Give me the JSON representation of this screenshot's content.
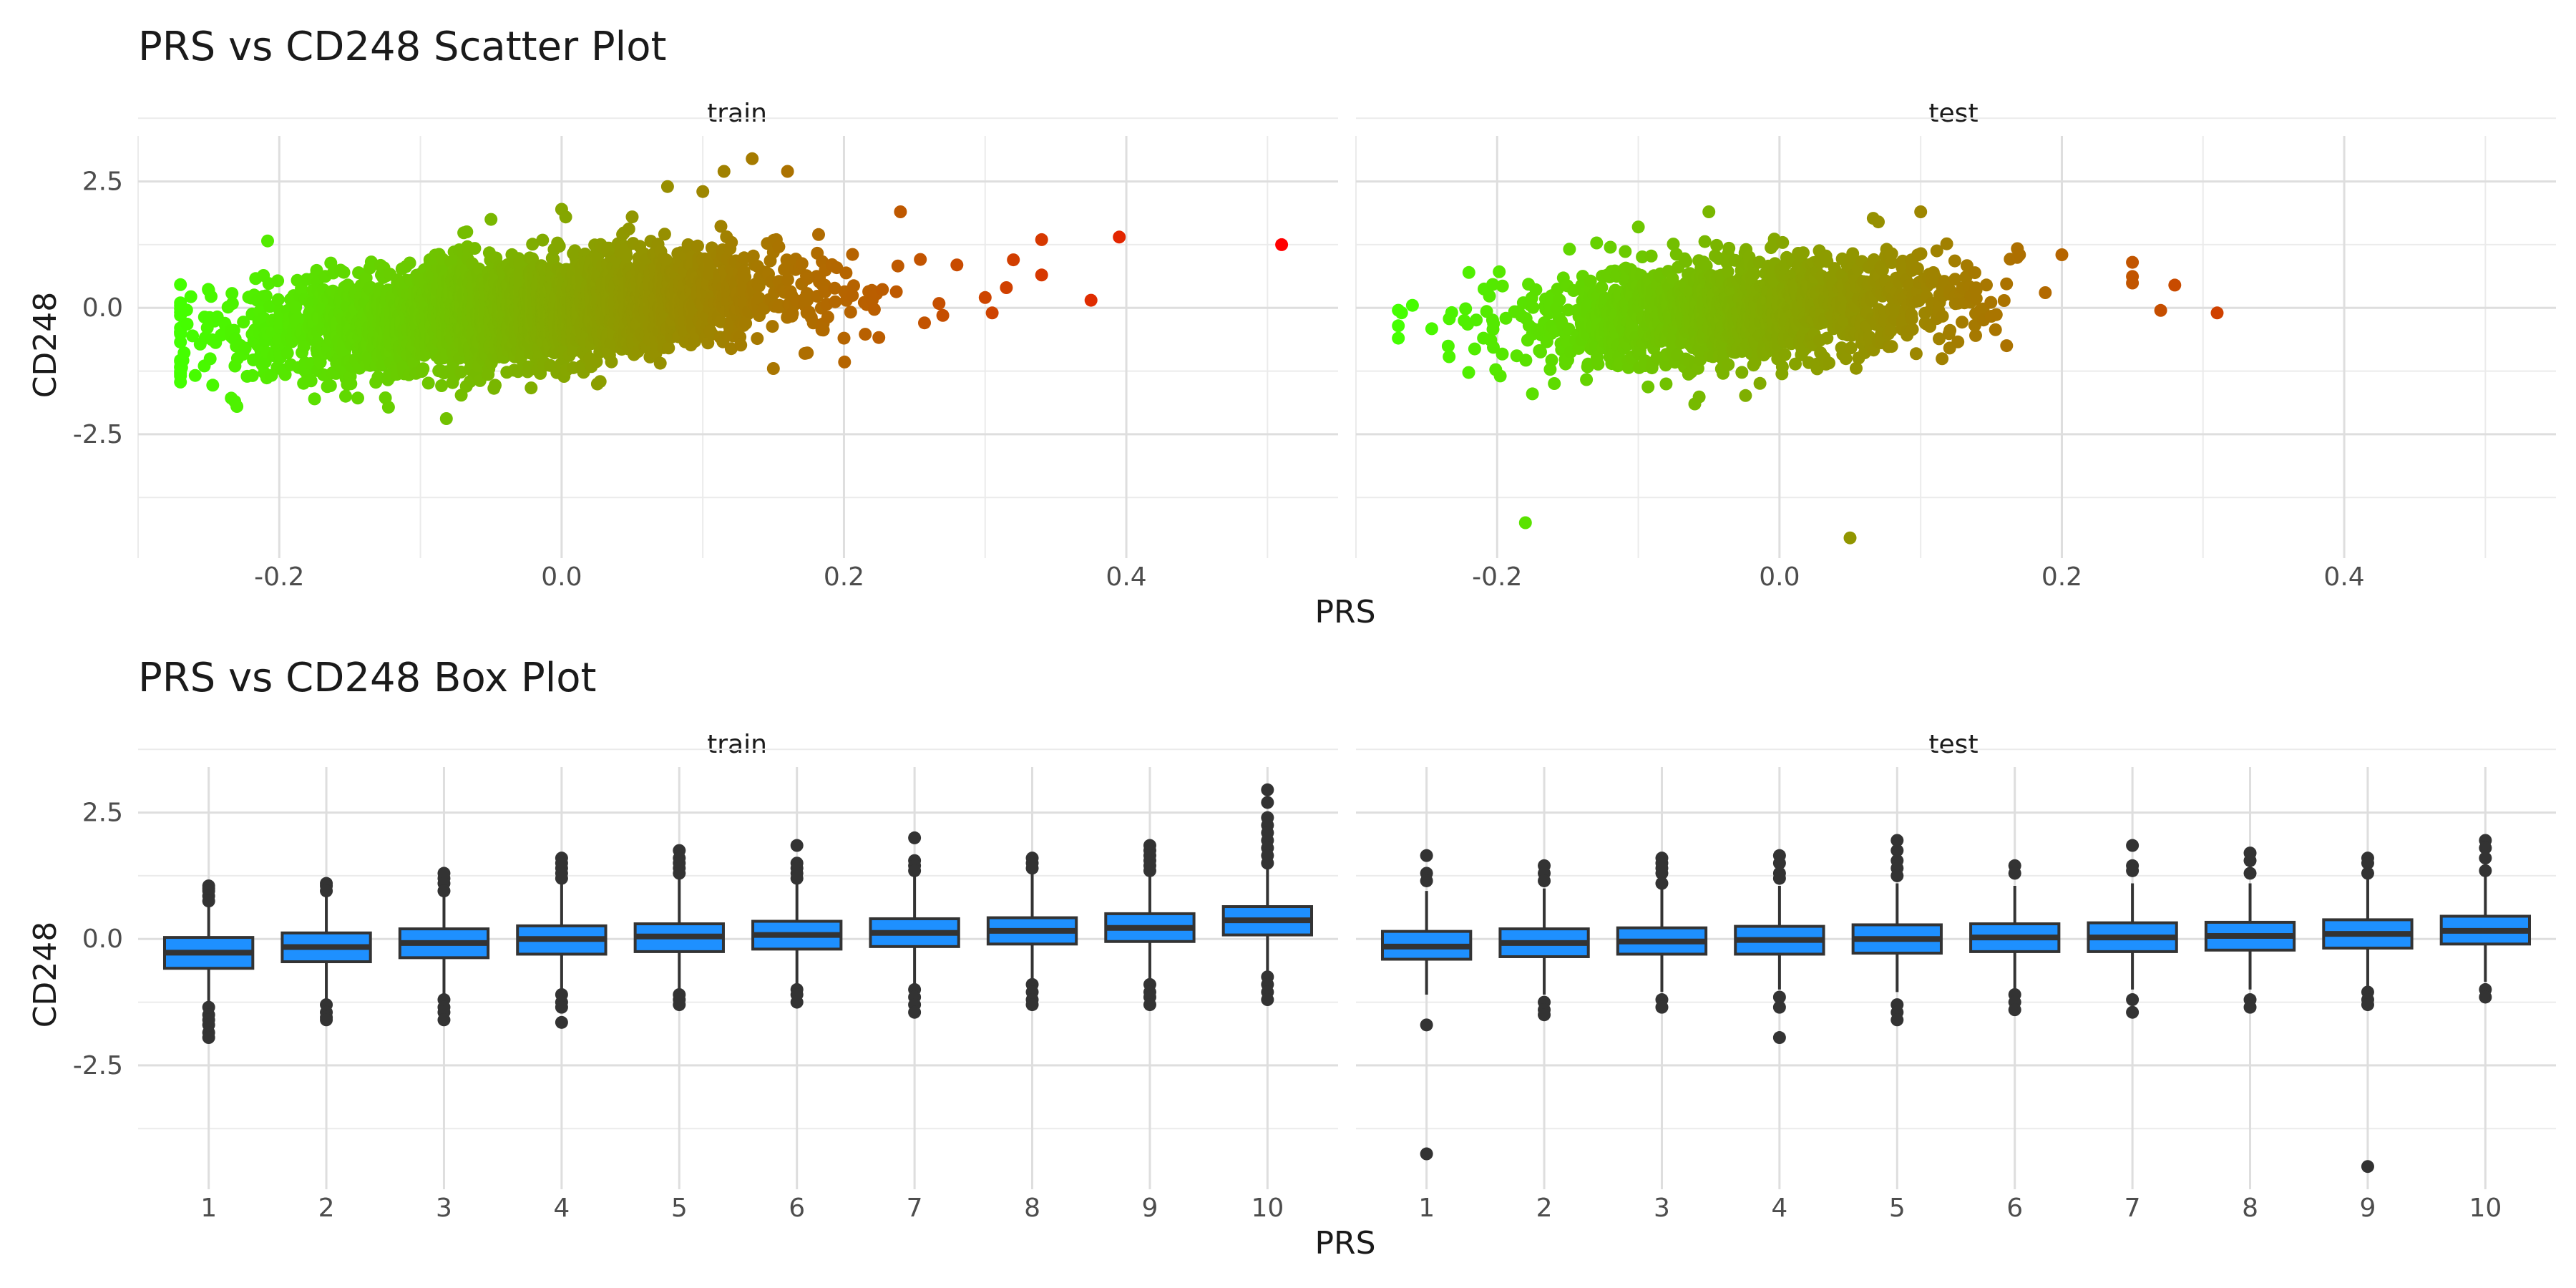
{
  "chart_data": [
    {
      "type": "scatter",
      "title": "PRS vs CD248 Scatter Plot",
      "xlabel": "PRS",
      "ylabel": "CD248",
      "xlim": [
        -0.3,
        0.55
      ],
      "ylim": [
        -4.95,
        3.4
      ],
      "x_ticks": [
        "-0.2",
        "0.0",
        "0.2",
        "0.4"
      ],
      "y_ticks": [
        "2.5",
        "0.0",
        "-2.5"
      ],
      "grid": true,
      "legend": "none",
      "color_scale": {
        "low": "#44ff00",
        "high": "#ff0000",
        "by": "PRS"
      },
      "facets": [
        {
          "name": "train",
          "cloud": {
            "n": 3600,
            "x_mean": -0.03,
            "x_sd": 0.09,
            "x_range": [
              -0.27,
              0.3
            ],
            "slope": 2.2,
            "y_sd": 0.5
          },
          "points": [
            {
              "x": 0.51,
              "y": 1.25
            },
            {
              "x": 0.395,
              "y": 1.4
            },
            {
              "x": 0.375,
              "y": 0.15
            },
            {
              "x": 0.34,
              "y": 1.35
            },
            {
              "x": 0.34,
              "y": 0.65
            },
            {
              "x": 0.32,
              "y": 0.95
            },
            {
              "x": 0.315,
              "y": 0.4
            },
            {
              "x": 0.305,
              "y": -0.1
            },
            {
              "x": 0.28,
              "y": 0.85
            },
            {
              "x": 0.27,
              "y": -0.15
            },
            {
              "x": 0.24,
              "y": 1.9
            },
            {
              "x": 0.22,
              "y": 0.15
            },
            {
              "x": 0.135,
              "y": 2.95
            },
            {
              "x": 0.115,
              "y": 2.7
            },
            {
              "x": 0.16,
              "y": 2.7
            },
            {
              "x": 0.1,
              "y": 2.3
            },
            {
              "x": 0.075,
              "y": 2.4
            },
            {
              "x": 0.15,
              "y": 1.1
            },
            {
              "x": 0.15,
              "y": -1.2
            },
            {
              "x": 0.2,
              "y": -0.6
            },
            {
              "x": -0.23,
              "y": -1.95
            },
            {
              "x": -0.27,
              "y": 0.1
            },
            {
              "x": -0.27,
              "y": -1.3
            },
            {
              "x": -0.25,
              "y": 0.35
            },
            {
              "x": -0.175,
              "y": -1.8
            },
            {
              "x": 0.0,
              "y": 1.95
            },
            {
              "x": -0.05,
              "y": 1.75
            },
            {
              "x": 0.05,
              "y": 1.8
            }
          ]
        },
        {
          "name": "test",
          "cloud": {
            "n": 1500,
            "x_mean": -0.03,
            "x_sd": 0.08,
            "x_range": [
              -0.27,
              0.25
            ],
            "slope": 1.8,
            "y_sd": 0.5
          },
          "points": [
            {
              "x": 0.31,
              "y": -0.1
            },
            {
              "x": 0.28,
              "y": 0.45
            },
            {
              "x": 0.27,
              "y": -0.05
            },
            {
              "x": 0.25,
              "y": 0.9
            },
            {
              "x": 0.2,
              "y": 1.05
            },
            {
              "x": 0.17,
              "y": 1.05
            },
            {
              "x": -0.18,
              "y": -4.25
            },
            {
              "x": 0.05,
              "y": -4.55
            },
            {
              "x": -0.27,
              "y": -0.6
            },
            {
              "x": -0.26,
              "y": 0.05
            },
            {
              "x": -0.22,
              "y": 0.7
            },
            {
              "x": -0.175,
              "y": -1.7
            },
            {
              "x": -0.06,
              "y": -1.9
            },
            {
              "x": 0.1,
              "y": 1.9
            },
            {
              "x": -0.05,
              "y": 1.9
            },
            {
              "x": 0.07,
              "y": 1.7
            },
            {
              "x": -0.1,
              "y": 1.6
            }
          ]
        }
      ]
    },
    {
      "type": "box",
      "title": "PRS vs CD248 Box Plot",
      "xlabel": "PRS",
      "ylabel": "CD248",
      "categories": [
        "1",
        "2",
        "3",
        "4",
        "5",
        "6",
        "7",
        "8",
        "9",
        "10"
      ],
      "y_ticks": [
        "2.5",
        "0.0",
        "-2.5"
      ],
      "ylim": [
        -4.95,
        3.4
      ],
      "fill": "#1e90ff",
      "grid": true,
      "facets": [
        {
          "name": "train",
          "boxes": [
            {
              "q1": -0.58,
              "median": -0.27,
              "q3": 0.03,
              "lower": -1.3,
              "upper": 0.82,
              "outliers": [
                1.05,
                1.0,
                0.95,
                0.85,
                0.75,
                -1.35,
                -1.5,
                -1.6,
                -1.7,
                -1.85,
                -1.95
              ]
            },
            {
              "q1": -0.45,
              "median": -0.16,
              "q3": 0.12,
              "lower": -1.2,
              "upper": 0.9,
              "outliers": [
                1.1,
                1.05,
                0.95,
                -1.3,
                -1.45,
                -1.55,
                -1.6
              ]
            },
            {
              "q1": -0.37,
              "median": -0.08,
              "q3": 0.2,
              "lower": -1.1,
              "upper": 0.95,
              "outliers": [
                1.3,
                1.2,
                1.1,
                0.95,
                -1.2,
                -1.35,
                -1.45,
                -1.6
              ]
            },
            {
              "q1": -0.3,
              "median": 0.0,
              "q3": 0.26,
              "lower": -1.0,
              "upper": 1.1,
              "outliers": [
                1.6,
                1.5,
                1.4,
                1.3,
                1.2,
                -1.1,
                -1.25,
                -1.35,
                -1.65
              ]
            },
            {
              "q1": -0.25,
              "median": 0.05,
              "q3": 0.3,
              "lower": -1.0,
              "upper": 1.2,
              "outliers": [
                1.75,
                1.6,
                1.5,
                1.4,
                1.3,
                -1.1,
                -1.2,
                -1.3
              ]
            },
            {
              "q1": -0.2,
              "median": 0.08,
              "q3": 0.35,
              "lower": -0.95,
              "upper": 1.15,
              "outliers": [
                1.85,
                1.5,
                1.4,
                1.3,
                1.2,
                -1.0,
                -1.1,
                -1.25
              ]
            },
            {
              "q1": -0.15,
              "median": 0.12,
              "q3": 0.4,
              "lower": -0.9,
              "upper": 1.25,
              "outliers": [
                2.0,
                1.55,
                1.45,
                1.35,
                -1.0,
                -1.15,
                -1.3,
                -1.45
              ]
            },
            {
              "q1": -0.1,
              "median": 0.16,
              "q3": 0.42,
              "lower": -0.85,
              "upper": 1.3,
              "outliers": [
                1.6,
                1.5,
                1.4,
                -0.9,
                -1.05,
                -1.2,
                -1.3
              ]
            },
            {
              "q1": -0.05,
              "median": 0.22,
              "q3": 0.5,
              "lower": -0.8,
              "upper": 1.3,
              "outliers": [
                1.85,
                1.75,
                1.65,
                1.55,
                1.45,
                1.35,
                -0.9,
                -1.05,
                -1.15,
                -1.3
              ]
            },
            {
              "q1": 0.08,
              "median": 0.37,
              "q3": 0.64,
              "lower": -0.7,
              "upper": 1.4,
              "outliers": [
                2.95,
                2.7,
                2.4,
                2.25,
                2.1,
                1.95,
                1.8,
                1.65,
                1.5,
                -0.75,
                -0.9,
                -1.05,
                -1.2
              ]
            }
          ]
        },
        {
          "name": "test",
          "boxes": [
            {
              "q1": -0.4,
              "median": -0.15,
              "q3": 0.15,
              "lower": -1.1,
              "upper": 0.95,
              "outliers": [
                1.65,
                1.3,
                1.15,
                -1.7,
                -4.25
              ]
            },
            {
              "q1": -0.35,
              "median": -0.08,
              "q3": 0.2,
              "lower": -1.1,
              "upper": 1.0,
              "outliers": [
                1.45,
                1.3,
                1.15,
                -1.25,
                -1.4,
                -1.5
              ]
            },
            {
              "q1": -0.3,
              "median": -0.05,
              "q3": 0.22,
              "lower": -1.05,
              "upper": 1.0,
              "outliers": [
                1.6,
                1.5,
                1.4,
                1.3,
                1.1,
                -1.2,
                -1.35
              ]
            },
            {
              "q1": -0.3,
              "median": -0.02,
              "q3": 0.25,
              "lower": -1.0,
              "upper": 1.05,
              "outliers": [
                1.65,
                1.5,
                1.3,
                1.2,
                -1.15,
                -1.35,
                -1.95
              ]
            },
            {
              "q1": -0.28,
              "median": 0.0,
              "q3": 0.28,
              "lower": -1.05,
              "upper": 1.1,
              "outliers": [
                1.95,
                1.75,
                1.55,
                1.4,
                1.25,
                -1.3,
                -1.45,
                -1.6
              ]
            },
            {
              "q1": -0.25,
              "median": 0.03,
              "q3": 0.3,
              "lower": -1.0,
              "upper": 1.05,
              "outliers": [
                1.45,
                1.3,
                -1.1,
                -1.25,
                -1.4
              ]
            },
            {
              "q1": -0.25,
              "median": 0.03,
              "q3": 0.32,
              "lower": -1.0,
              "upper": 1.1,
              "outliers": [
                1.85,
                1.45,
                1.35,
                -1.2,
                -1.45
              ]
            },
            {
              "q1": -0.22,
              "median": 0.06,
              "q3": 0.33,
              "lower": -1.0,
              "upper": 1.1,
              "outliers": [
                1.7,
                1.55,
                1.3,
                -1.2,
                -1.35
              ]
            },
            {
              "q1": -0.18,
              "median": 0.1,
              "q3": 0.38,
              "lower": -0.95,
              "upper": 1.2,
              "outliers": [
                1.6,
                1.5,
                1.3,
                -1.05,
                -1.2,
                -1.3,
                -4.5
              ]
            },
            {
              "q1": -0.1,
              "median": 0.16,
              "q3": 0.45,
              "lower": -0.85,
              "upper": 1.25,
              "outliers": [
                1.95,
                1.8,
                1.6,
                1.35,
                -1.0,
                -1.15
              ]
            }
          ]
        }
      ]
    }
  ]
}
